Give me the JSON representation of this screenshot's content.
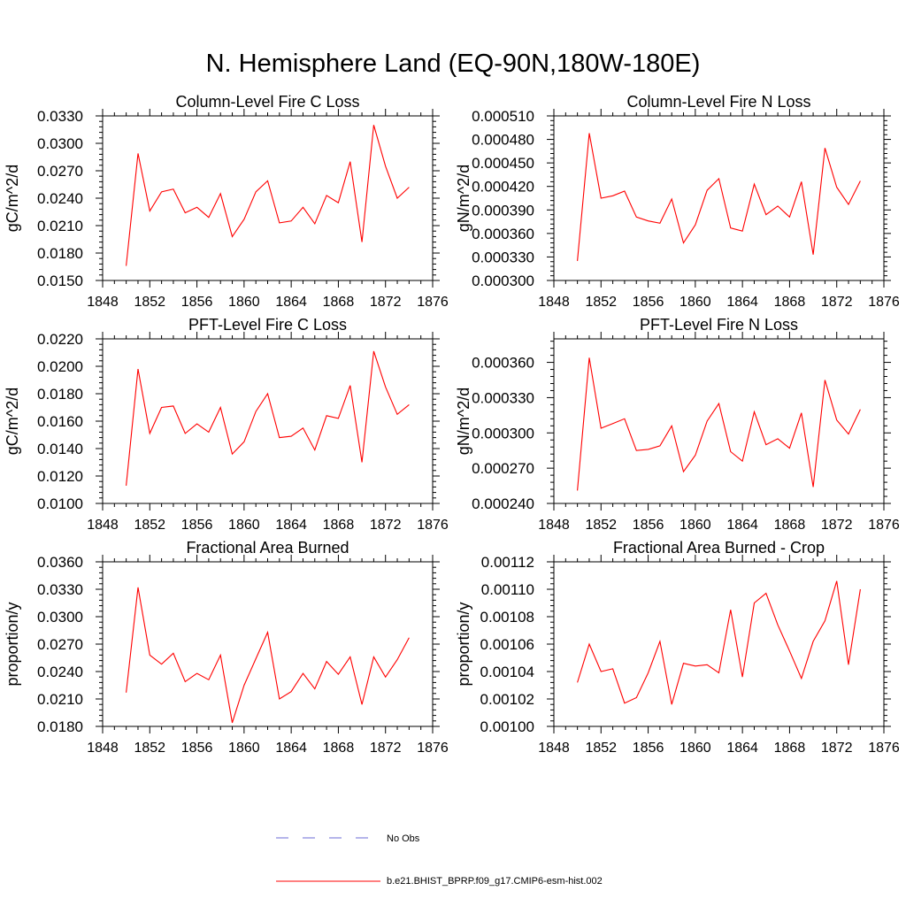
{
  "title": "N. Hemisphere Land (EQ-90N,180W-180E)",
  "colors": {
    "model": "#ff0000",
    "obs": "#6b6bd6",
    "axis": "#000000"
  },
  "legend": {
    "obs_label": "No Obs",
    "model_label": "b.e21.BHIST_BPRP.f09_g17.CMIP6-esm-hist.002"
  },
  "chart_data": [
    {
      "type": "line",
      "title": "Column-Level Fire C Loss",
      "ylabel": "gC/m^2/d",
      "xlim": [
        1848,
        1876
      ],
      "xticks": [
        "1848",
        "1852",
        "1856",
        "1860",
        "1864",
        "1868",
        "1872",
        "1876"
      ],
      "ylim": [
        0.015,
        0.033
      ],
      "yticks": [
        "0.0150",
        "0.0180",
        "0.0210",
        "0.0240",
        "0.0270",
        "0.0300",
        "0.0330"
      ],
      "series": [
        {
          "x": [
            1850,
            1851,
            1852,
            1853,
            1854,
            1855,
            1856,
            1857,
            1858,
            1859,
            1860,
            1861,
            1862,
            1863,
            1864,
            1865,
            1866,
            1867,
            1868,
            1869,
            1870,
            1871,
            1872,
            1873,
            1874
          ],
          "values": [
            0.0166,
            0.0289,
            0.0226,
            0.0247,
            0.025,
            0.0224,
            0.023,
            0.0219,
            0.0245,
            0.0198,
            0.0217,
            0.0247,
            0.0259,
            0.0213,
            0.0215,
            0.023,
            0.0212,
            0.0243,
            0.0235,
            0.028,
            0.0192,
            0.032,
            0.0275,
            0.024,
            0.0252
          ]
        }
      ]
    },
    {
      "type": "line",
      "title": "Column-Level Fire N Loss",
      "ylabel": "gN/m^2/d",
      "xlim": [
        1848,
        1876
      ],
      "xticks": [
        "1848",
        "1852",
        "1856",
        "1860",
        "1864",
        "1868",
        "1872",
        "1876"
      ],
      "ylim": [
        0.0003,
        0.00051
      ],
      "yticks": [
        "0.000300",
        "0.000330",
        "0.000360",
        "0.000390",
        "0.000420",
        "0.000450",
        "0.000480",
        "0.000510"
      ],
      "series": [
        {
          "x": [
            1850,
            1851,
            1852,
            1853,
            1854,
            1855,
            1856,
            1857,
            1858,
            1859,
            1860,
            1861,
            1862,
            1863,
            1864,
            1865,
            1866,
            1867,
            1868,
            1869,
            1870,
            1871,
            1872,
            1873,
            1874
          ],
          "values": [
            0.000325,
            0.000488,
            0.000405,
            0.000408,
            0.000414,
            0.000381,
            0.000376,
            0.000373,
            0.000404,
            0.000348,
            0.000371,
            0.000415,
            0.00043,
            0.000367,
            0.000363,
            0.000423,
            0.000384,
            0.000395,
            0.000381,
            0.000426,
            0.000333,
            0.000469,
            0.000419,
            0.000397,
            0.000427
          ]
        }
      ]
    },
    {
      "type": "line",
      "title": "PFT-Level Fire C Loss",
      "ylabel": "gC/m^2/d",
      "xlim": [
        1848,
        1876
      ],
      "xticks": [
        "1848",
        "1852",
        "1856",
        "1860",
        "1864",
        "1868",
        "1872",
        "1876"
      ],
      "ylim": [
        0.01,
        0.022
      ],
      "yticks": [
        "0.0100",
        "0.0120",
        "0.0140",
        "0.0160",
        "0.0180",
        "0.0200",
        "0.0220"
      ],
      "series": [
        {
          "x": [
            1850,
            1851,
            1852,
            1853,
            1854,
            1855,
            1856,
            1857,
            1858,
            1859,
            1860,
            1861,
            1862,
            1863,
            1864,
            1865,
            1866,
            1867,
            1868,
            1869,
            1870,
            1871,
            1872,
            1873,
            1874
          ],
          "values": [
            0.0113,
            0.0198,
            0.0151,
            0.017,
            0.0171,
            0.0151,
            0.0158,
            0.0152,
            0.017,
            0.0136,
            0.0145,
            0.0167,
            0.018,
            0.0148,
            0.0149,
            0.0155,
            0.0139,
            0.0164,
            0.0162,
            0.0186,
            0.013,
            0.0211,
            0.0185,
            0.0165,
            0.0172
          ]
        }
      ]
    },
    {
      "type": "line",
      "title": "PFT-Level Fire N Loss",
      "ylabel": "gN/m^2/d",
      "xlim": [
        1848,
        1876
      ],
      "xticks": [
        "1848",
        "1852",
        "1856",
        "1860",
        "1864",
        "1868",
        "1872",
        "1876"
      ],
      "ylim": [
        0.00024,
        0.00038
      ],
      "yticks": [
        "0.000240",
        "0.000270",
        "0.000300",
        "0.000330",
        "0.000360"
      ],
      "series": [
        {
          "x": [
            1850,
            1851,
            1852,
            1853,
            1854,
            1855,
            1856,
            1857,
            1858,
            1859,
            1860,
            1861,
            1862,
            1863,
            1864,
            1865,
            1866,
            1867,
            1868,
            1869,
            1870,
            1871,
            1872,
            1873,
            1874
          ],
          "values": [
            0.000251,
            0.000364,
            0.000304,
            0.000308,
            0.000312,
            0.000285,
            0.000286,
            0.000289,
            0.000306,
            0.000267,
            0.000281,
            0.00031,
            0.000325,
            0.000284,
            0.000276,
            0.000318,
            0.00029,
            0.000295,
            0.000287,
            0.000317,
            0.000254,
            0.000345,
            0.000311,
            0.000299,
            0.00032
          ]
        }
      ]
    },
    {
      "type": "line",
      "title": "Fractional Area Burned",
      "ylabel": "proportion/y",
      "xlim": [
        1848,
        1876
      ],
      "xticks": [
        "1848",
        "1852",
        "1856",
        "1860",
        "1864",
        "1868",
        "1872",
        "1876"
      ],
      "ylim": [
        0.018,
        0.036
      ],
      "yticks": [
        "0.0180",
        "0.0210",
        "0.0240",
        "0.0270",
        "0.0300",
        "0.0330",
        "0.0360"
      ],
      "series": [
        {
          "x": [
            1850,
            1851,
            1852,
            1853,
            1854,
            1855,
            1856,
            1857,
            1858,
            1859,
            1860,
            1861,
            1862,
            1863,
            1864,
            1865,
            1866,
            1867,
            1868,
            1869,
            1870,
            1871,
            1872,
            1873,
            1874
          ],
          "values": [
            0.0217,
            0.0332,
            0.0258,
            0.0248,
            0.026,
            0.0229,
            0.0238,
            0.0231,
            0.0258,
            0.0184,
            0.0225,
            0.0254,
            0.0283,
            0.021,
            0.0218,
            0.0238,
            0.0221,
            0.0251,
            0.0237,
            0.0256,
            0.0204,
            0.0256,
            0.0234,
            0.0253,
            0.0277
          ]
        }
      ]
    },
    {
      "type": "line",
      "title": "Fractional Area Burned - Crop",
      "ylabel": "proportion/y",
      "xlim": [
        1848,
        1876
      ],
      "xticks": [
        "1848",
        "1852",
        "1856",
        "1860",
        "1864",
        "1868",
        "1872",
        "1876"
      ],
      "ylim": [
        0.001,
        0.00112
      ],
      "yticks": [
        "0.00100",
        "0.00102",
        "0.00104",
        "0.00106",
        "0.00108",
        "0.00110",
        "0.00112"
      ],
      "series": [
        {
          "x": [
            1850,
            1851,
            1852,
            1853,
            1854,
            1855,
            1856,
            1857,
            1858,
            1859,
            1860,
            1861,
            1862,
            1863,
            1864,
            1865,
            1866,
            1867,
            1868,
            1869,
            1870,
            1871,
            1872,
            1873,
            1874
          ],
          "values": [
            0.001032,
            0.00106,
            0.00104,
            0.001042,
            0.001017,
            0.001021,
            0.001039,
            0.001062,
            0.001016,
            0.001046,
            0.001044,
            0.001045,
            0.001039,
            0.001085,
            0.001036,
            0.00109,
            0.001097,
            0.001074,
            0.001055,
            0.001035,
            0.001062,
            0.001077,
            0.001106,
            0.001045,
            0.0011
          ]
        }
      ]
    }
  ]
}
